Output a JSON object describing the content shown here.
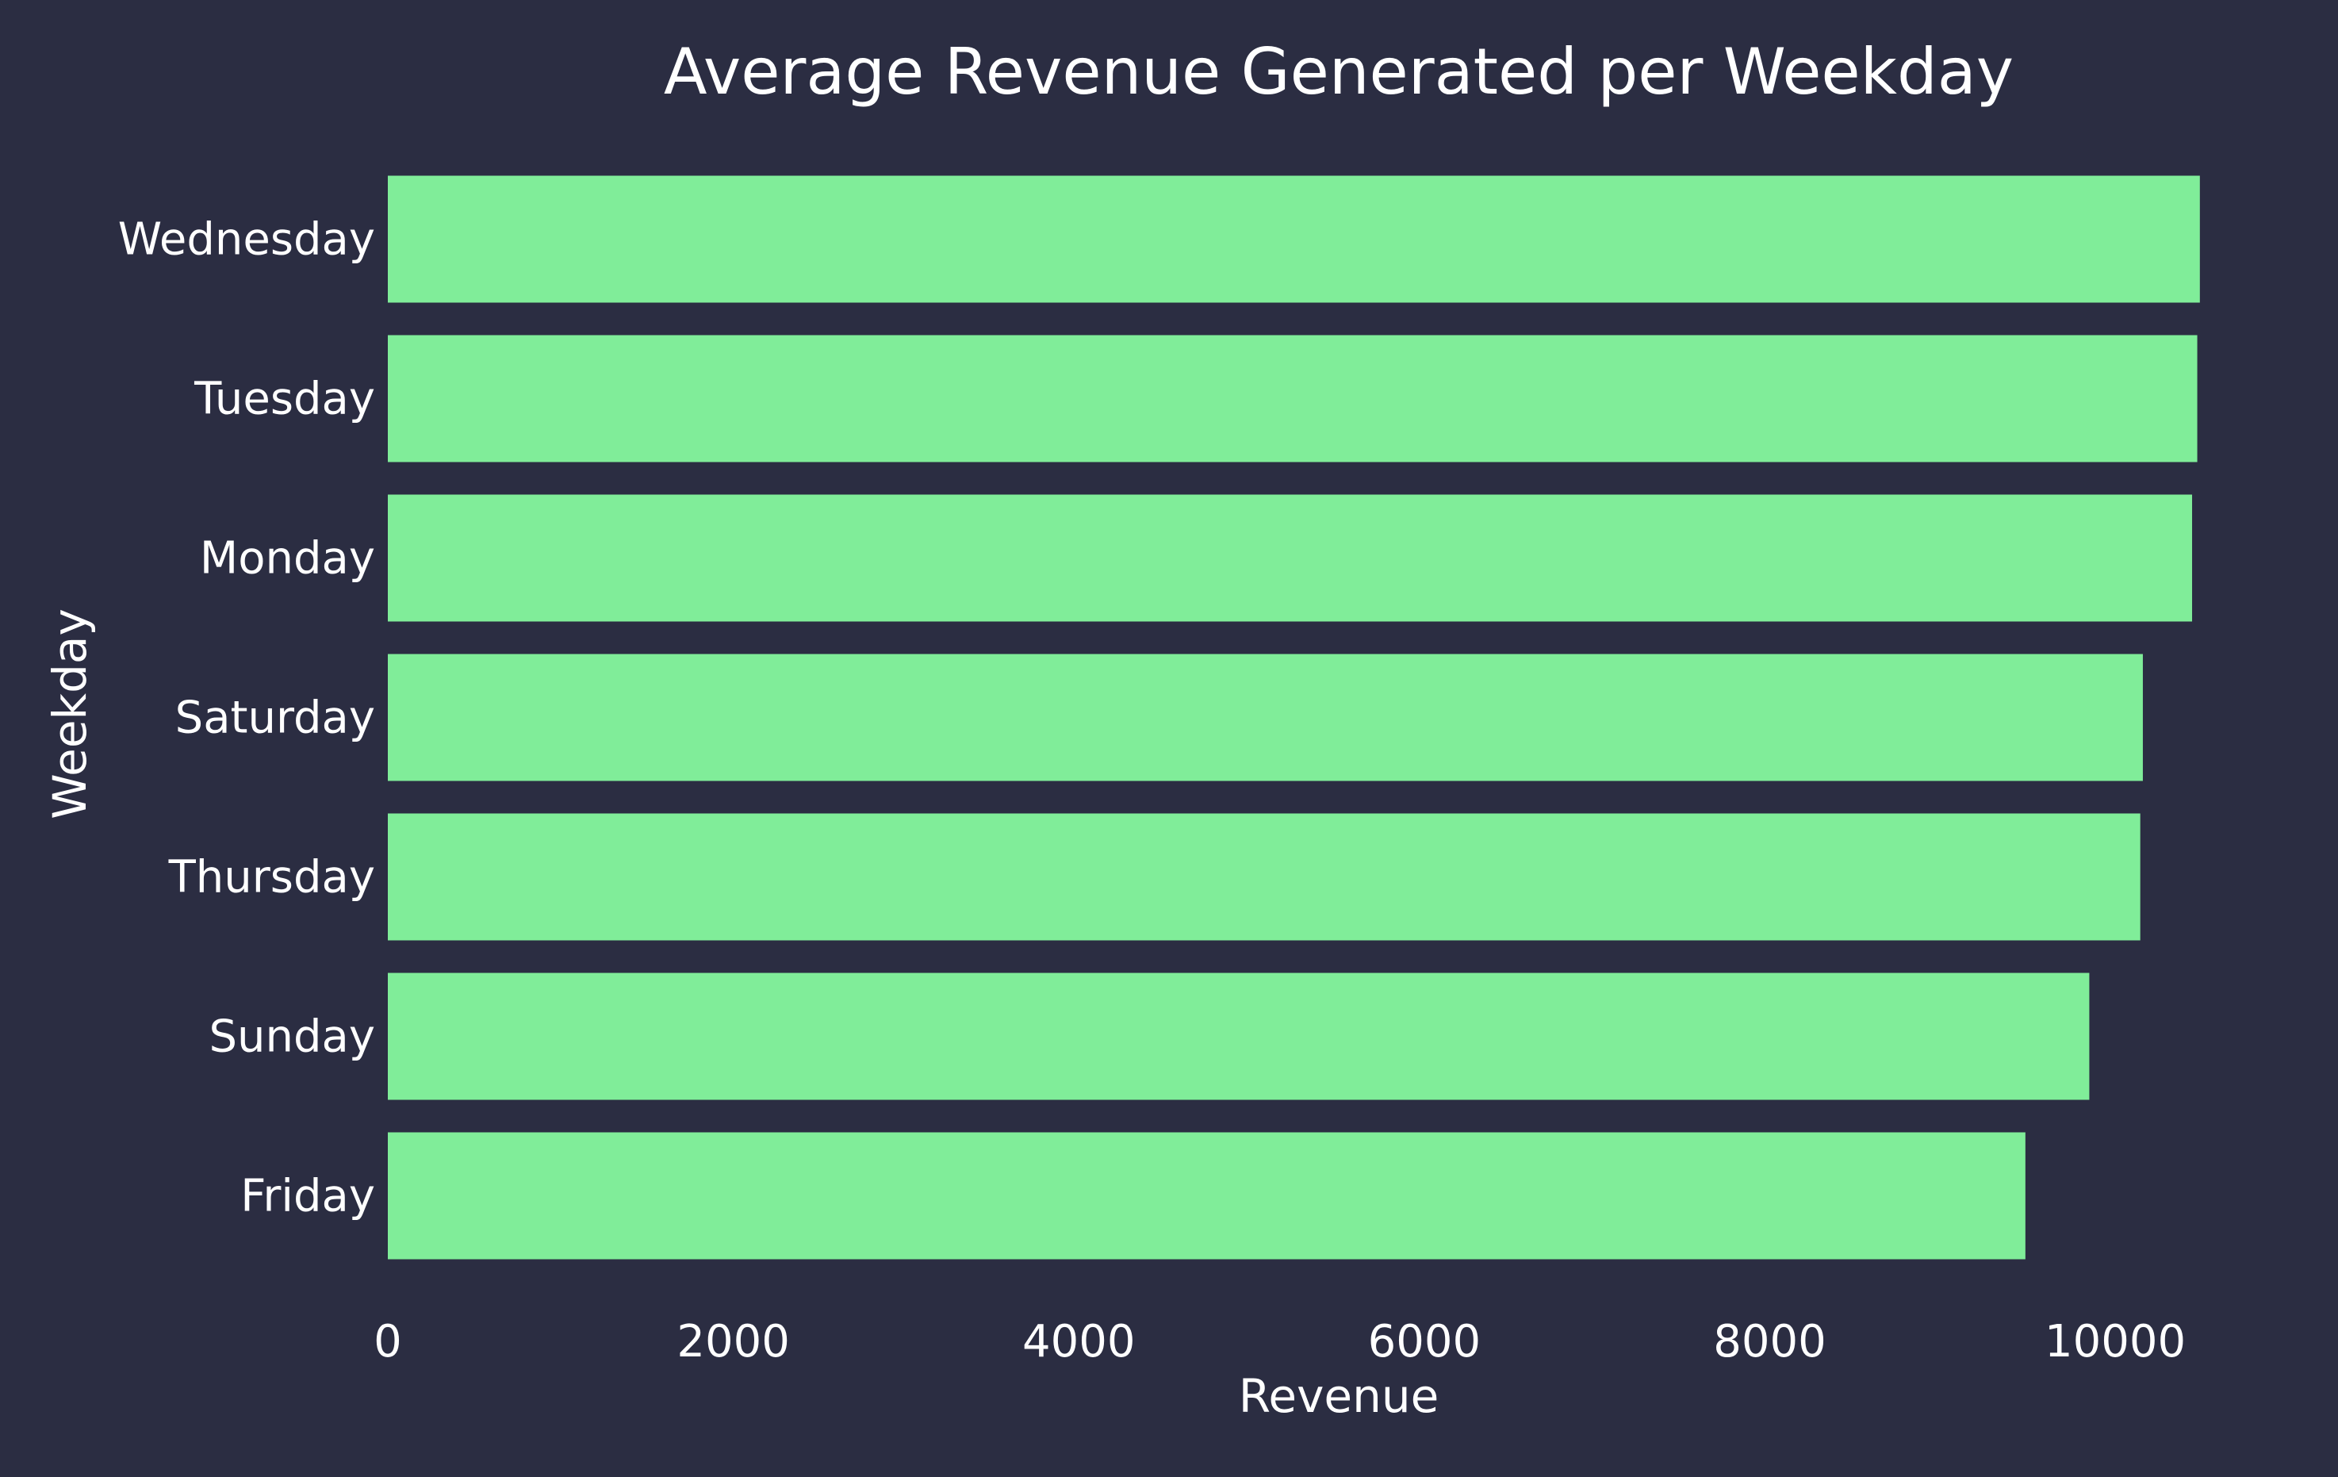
{
  "chart_data": {
    "type": "bar",
    "orientation": "horizontal",
    "title": "Average Revenue Generated per Weekday",
    "xlabel": "Revenue",
    "ylabel": "Weekday",
    "categories": [
      "Wednesday",
      "Tuesday",
      "Monday",
      "Saturday",
      "Thursday",
      "Sunday",
      "Friday"
    ],
    "values": [
      10490,
      10475,
      10445,
      10160,
      10145,
      9850,
      9480
    ],
    "xlim": [
      0,
      10500
    ],
    "xticks": [
      0,
      2000,
      4000,
      6000,
      8000,
      10000
    ],
    "grid": false,
    "colors": {
      "background": "#2b2d42",
      "bar": "#80ed99",
      "text": "#ffffff"
    }
  }
}
